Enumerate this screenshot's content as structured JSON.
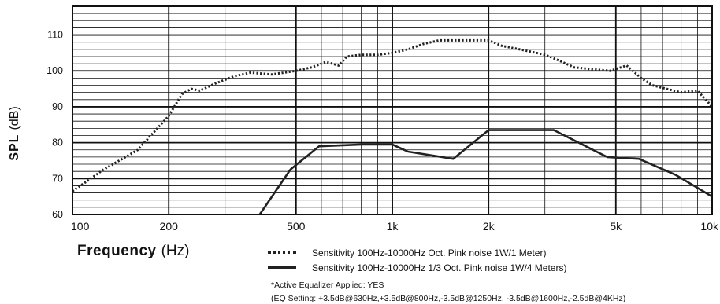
{
  "chart_data": {
    "type": "line",
    "title": "",
    "ylabel": "SPL",
    "ylabel_unit": "(dB)",
    "xlabel": "Frequency",
    "xlabel_unit": "(Hz)",
    "x_scale": "log",
    "xlim": [
      100,
      10000
    ],
    "ylim": [
      60,
      118
    ],
    "x_ticks": [
      {
        "value": 100,
        "label": "100"
      },
      {
        "value": 200,
        "label": "200"
      },
      {
        "value": 500,
        "label": "500"
      },
      {
        "value": 1000,
        "label": "1k"
      },
      {
        "value": 2000,
        "label": "2k"
      },
      {
        "value": 5000,
        "label": "5k"
      },
      {
        "value": 10000,
        "label": "10k"
      }
    ],
    "y_ticks": [
      60,
      70,
      80,
      90,
      100,
      110
    ],
    "grid": true,
    "series": [
      {
        "name": "Sensitivity 100Hz-10000Hz Oct. Pink noise 1W/1 Meter)",
        "style": "dotted",
        "color": "#222222",
        "x": [
          100,
          112,
          125,
          140,
          160,
          180,
          200,
          220,
          235,
          250,
          280,
          320,
          360,
          420,
          500,
          560,
          620,
          680,
          720,
          800,
          900,
          1000,
          1120,
          1250,
          1400,
          1600,
          1800,
          2000,
          2200,
          2500,
          3000,
          3300,
          3700,
          4200,
          4800,
          5400,
          6000,
          6500,
          7200,
          8000,
          9000,
          10000
        ],
        "y": [
          66.5,
          69.5,
          72.5,
          75,
          78,
          83,
          87.5,
          93.5,
          95,
          94.5,
          96.5,
          98.5,
          99.5,
          99,
          100,
          101,
          102.5,
          101.5,
          104,
          104.5,
          104.5,
          105,
          106,
          107.5,
          108.5,
          108.5,
          108.5,
          108.5,
          107,
          106,
          104.5,
          103,
          101,
          100.5,
          100,
          101.5,
          98,
          96,
          95,
          94,
          94.5,
          90
        ]
      },
      {
        "name": "Sensitivity 100Hz-10000Hz 1/3 Oct. Pink noise 1W/4 Meters)",
        "style": "solid",
        "color": "#222222",
        "x": [
          385,
          480,
          590,
          800,
          1000,
          1120,
          1550,
          2000,
          3200,
          4700,
          5900,
          7700,
          10000
        ],
        "y": [
          60,
          72.5,
          79,
          79.5,
          79.5,
          77.5,
          75.5,
          83.5,
          83.5,
          76,
          75.5,
          71,
          65
        ]
      }
    ]
  },
  "notes": {
    "equalizer": "*Active Equalizer Applied: YES",
    "eq_setting": "(EQ Setting: +3.5dB@630Hz,+3.5dB@800Hz,-3.5dB@1250Hz, -3.5dB@1600Hz,-2.5dB@4KHz)"
  }
}
